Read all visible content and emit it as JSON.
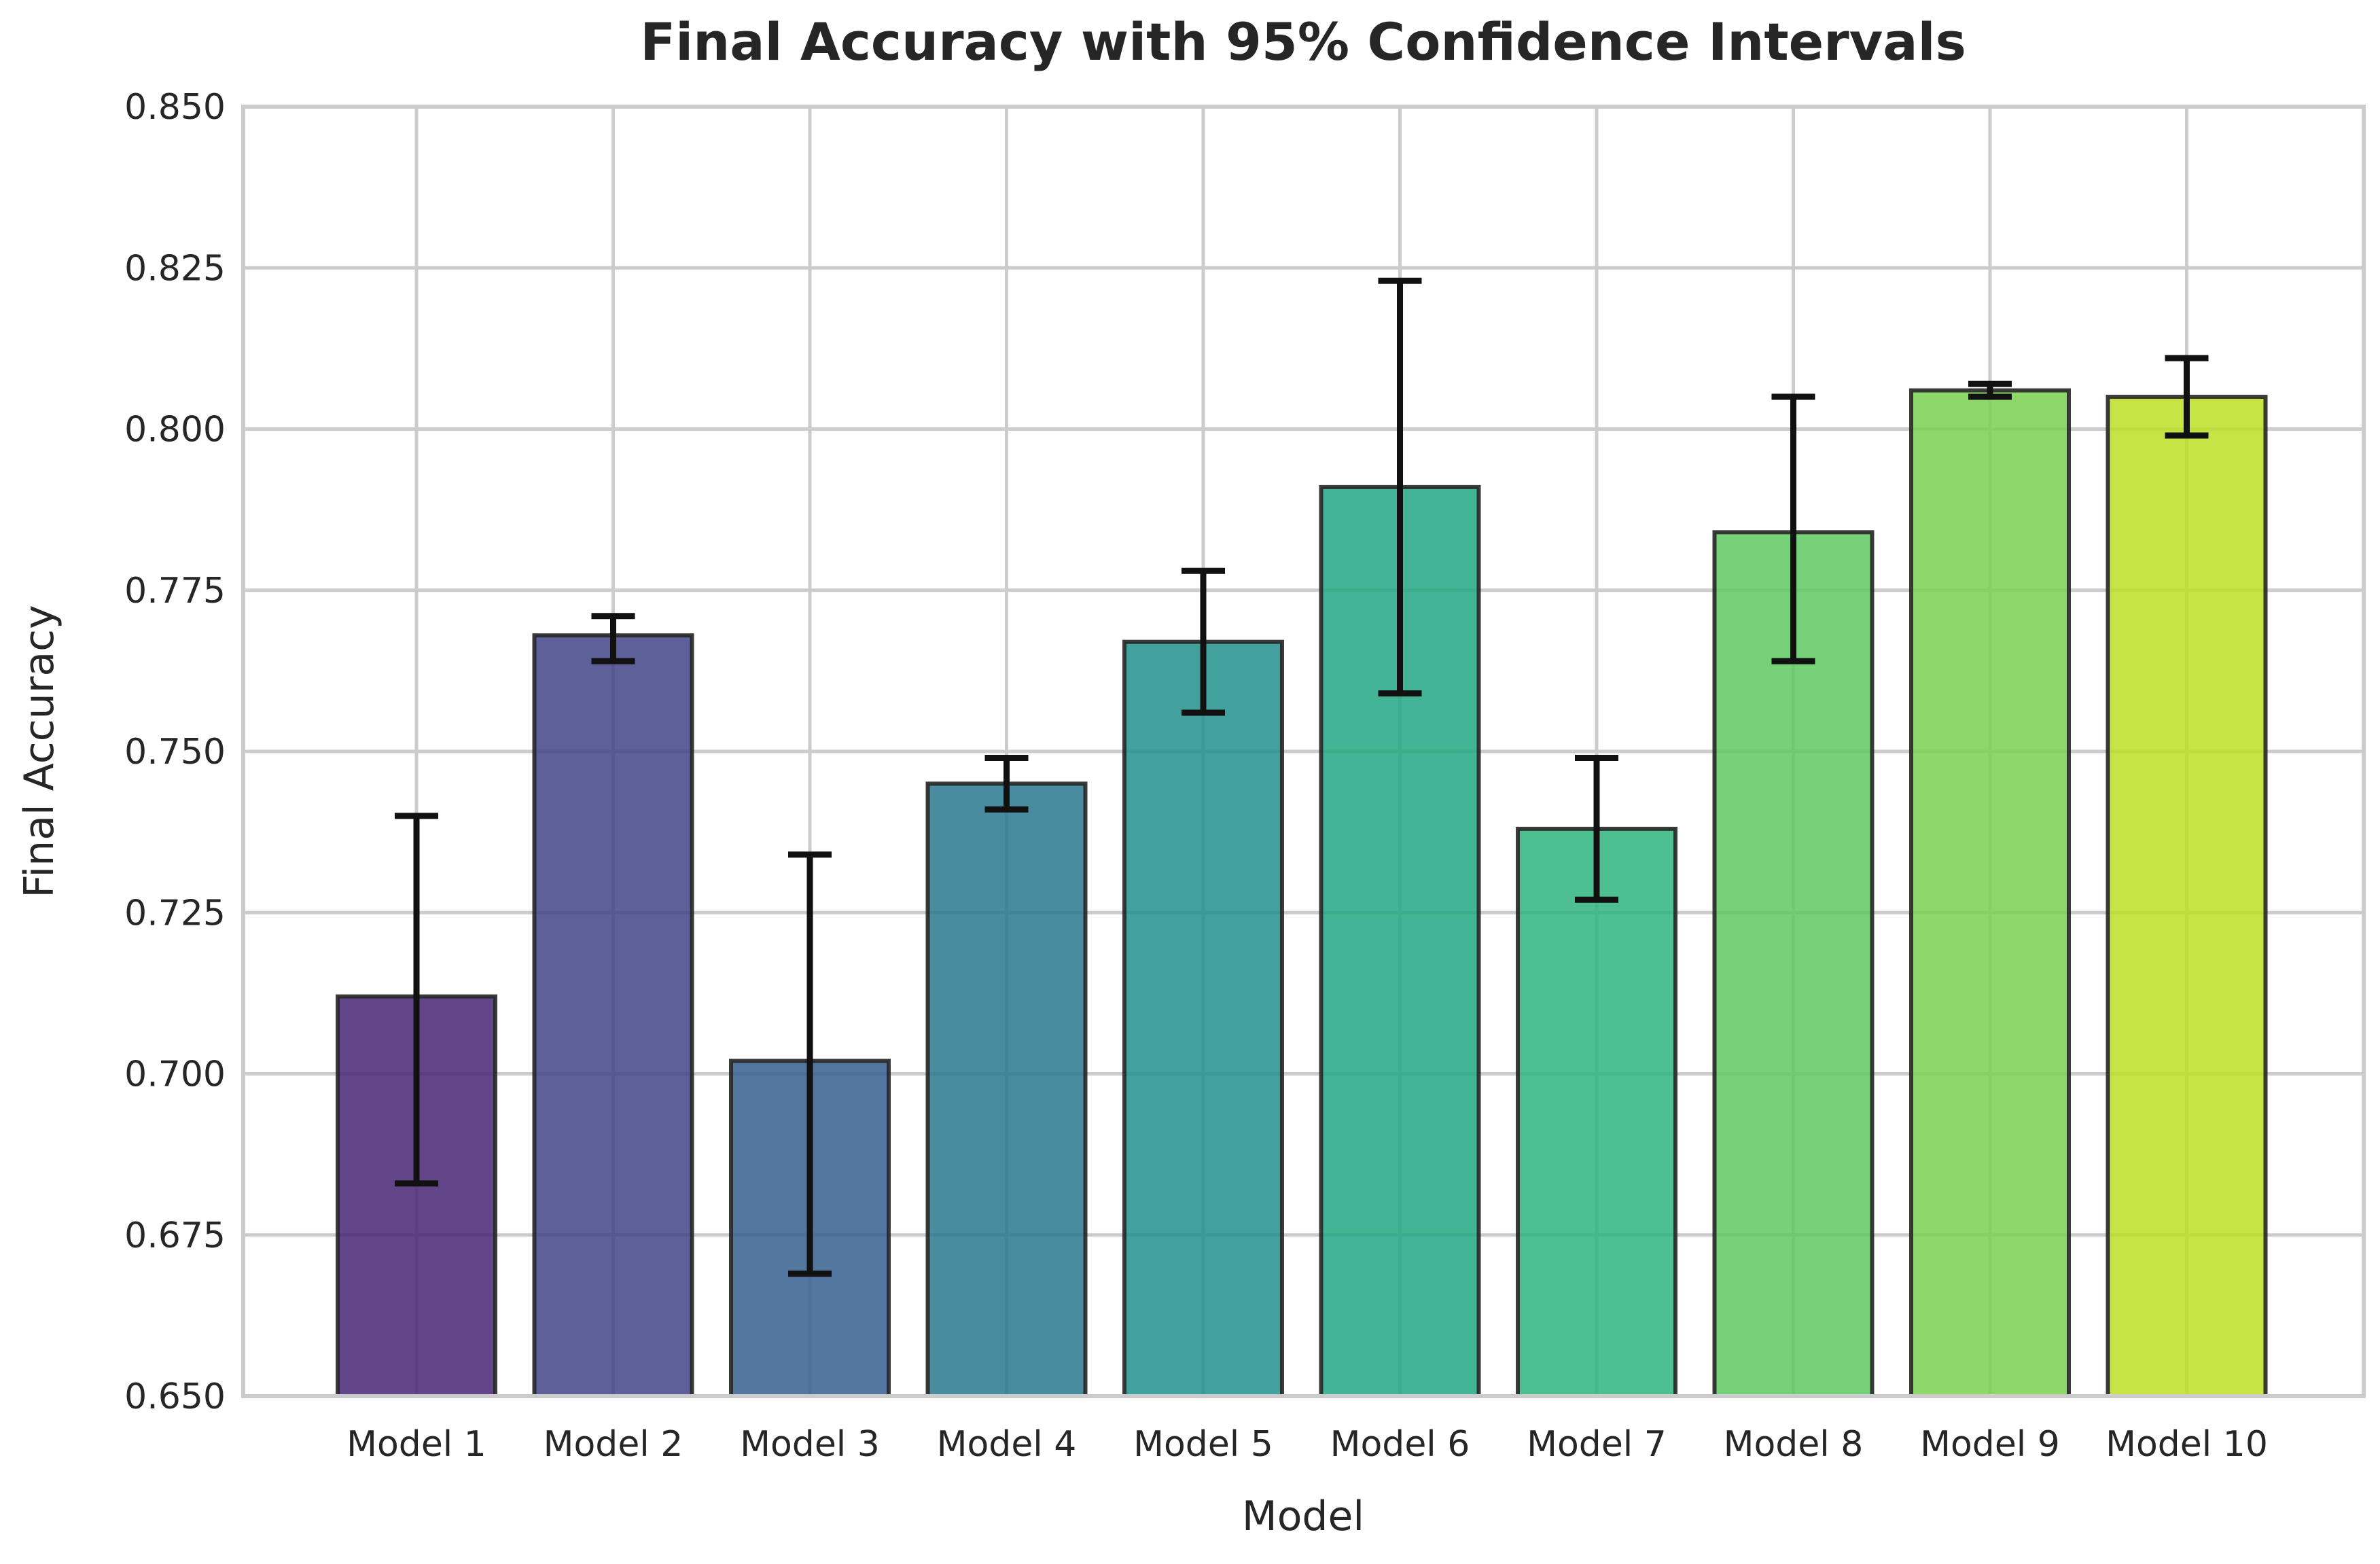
{
  "chart_data": {
    "type": "bar",
    "title": "Final Accuracy with 95% Confidence Intervals",
    "xlabel": "Model",
    "ylabel": "Final Accuracy",
    "ylim": [
      0.65,
      0.85
    ],
    "yticks": [
      "0.650",
      "0.675",
      "0.700",
      "0.725",
      "0.750",
      "0.775",
      "0.800",
      "0.825",
      "0.850"
    ],
    "categories": [
      "Model 1",
      "Model 2",
      "Model 3",
      "Model 4",
      "Model 5",
      "Model 6",
      "Model 7",
      "Model 8",
      "Model 9",
      "Model 10"
    ],
    "values": [
      0.712,
      0.768,
      0.702,
      0.745,
      0.767,
      0.791,
      0.738,
      0.784,
      0.806,
      0.805
    ],
    "ci_lower": [
      0.683,
      0.764,
      0.669,
      0.741,
      0.756,
      0.759,
      0.727,
      0.764,
      0.805,
      0.799
    ],
    "ci_upper": [
      0.74,
      0.771,
      0.734,
      0.749,
      0.778,
      0.823,
      0.749,
      0.805,
      0.807,
      0.811
    ],
    "colors": [
      "#482475",
      "#414487",
      "#355f8d",
      "#2a788e",
      "#21918c",
      "#22a884",
      "#2fb47c",
      "#5ec962",
      "#7ad151",
      "#bddf26"
    ],
    "grid": true,
    "legend": "none"
  }
}
